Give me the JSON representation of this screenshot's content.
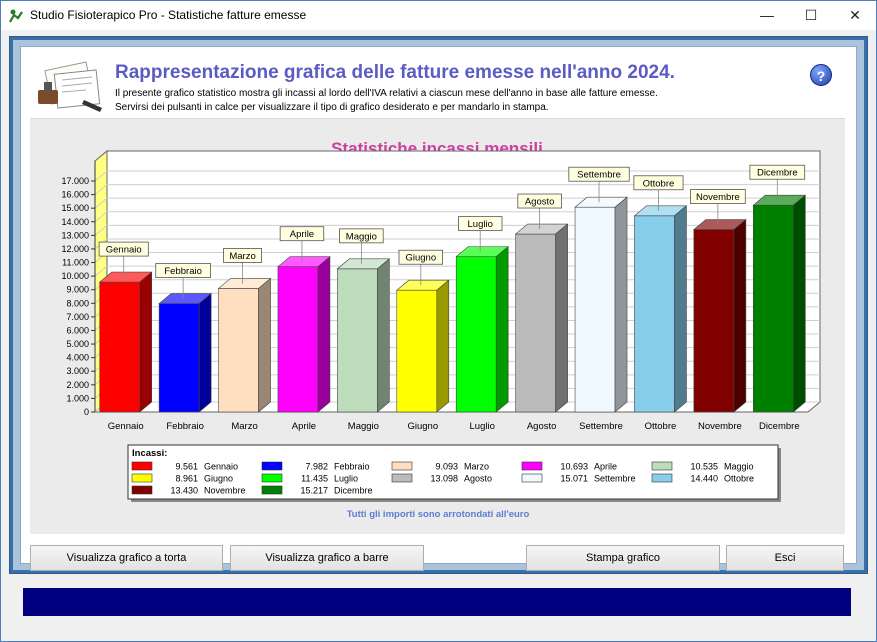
{
  "window": {
    "title": "Studio Fisioterapico Pro - Statistiche fatture emesse",
    "controls": {
      "minimize": "—",
      "maximize": "☐",
      "close": "✕"
    }
  },
  "header": {
    "title": "Rappresentazione grafica delle fatture emesse nell'anno 2024.",
    "desc_line1": "Il presente grafico statistico mostra gli incassi al lordo dell'IVA relativi a ciascun mese dell'anno in base alle fatture emesse.",
    "desc_line2": "Servirsi dei pulsanti in calce per visualizzare il tipo di grafico desiderato e per mandarlo in stampa.",
    "help_label": "?"
  },
  "legend_title": "Incassi:",
  "footnote": "Tutti gli importi sono arrotondati all'euro",
  "buttons": {
    "pie": "Visualizza grafico a torta",
    "bar": "Visualizza grafico a barre",
    "print": "Stampa grafico",
    "exit": "Esci"
  },
  "colors": {
    "title": "#5b5bc4",
    "chart_title": "#cc3fa0",
    "footnote": "#5b7fd0",
    "statusbar": "#000080"
  },
  "chart_data": {
    "type": "bar",
    "title": "Statistiche incassi mensili",
    "categories": [
      "Gennaio",
      "Febbraio",
      "Marzo",
      "Aprile",
      "Maggio",
      "Giugno",
      "Luglio",
      "Agosto",
      "Settembre",
      "Ottobre",
      "Novembre",
      "Dicembre"
    ],
    "values": [
      9561,
      7982,
      9093,
      10693,
      10535,
      8961,
      11435,
      13098,
      15071,
      14440,
      13430,
      15217
    ],
    "value_labels": [
      "9.561",
      "7.982",
      "9.093",
      "10.693",
      "10.535",
      "8.961",
      "11.435",
      "13.098",
      "15.071",
      "14.440",
      "13.430",
      "15.217"
    ],
    "bar_colors": [
      "#ff0000",
      "#0000ff",
      "#ffdfbf",
      "#ff00ff",
      "#bcdcbc",
      "#ffff00",
      "#00ff00",
      "#bbbbbb",
      "#f0f8ff",
      "#87ceeb",
      "#800000",
      "#008000"
    ],
    "ylim": [
      0,
      17000
    ],
    "yticks": [
      "0",
      "1.000",
      "2.000",
      "3.000",
      "4.000",
      "5.000",
      "6.000",
      "7.000",
      "8.000",
      "9.000",
      "10.000",
      "11.000",
      "12.000",
      "13.000",
      "14.000",
      "15.000",
      "16.000",
      "17.000"
    ],
    "grid": true,
    "legend_placement": "bottom"
  }
}
